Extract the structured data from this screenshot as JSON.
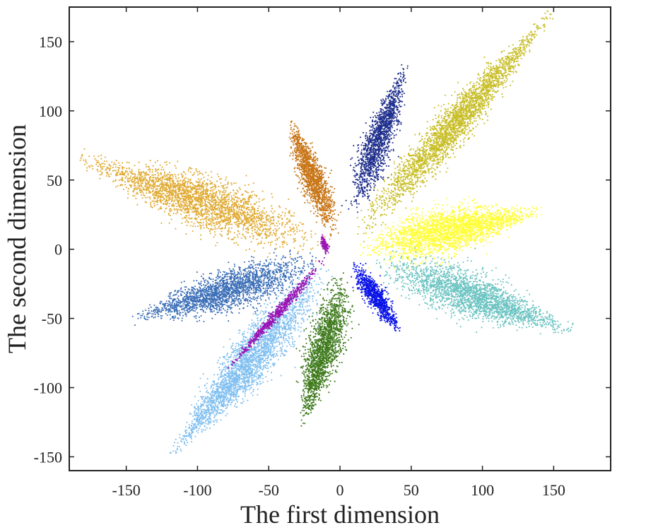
{
  "chart_data": {
    "type": "scatter",
    "title": "",
    "xlabel": "The first dimension",
    "ylabel": "The second dimension",
    "xlim": [
      -190,
      190
    ],
    "ylim": [
      -160,
      175
    ],
    "xticks": [
      -150,
      -100,
      -50,
      0,
      50,
      100,
      150
    ],
    "yticks": [
      -150,
      -100,
      -50,
      0,
      50,
      100,
      150
    ],
    "xtick_labels": [
      "-150",
      "-100",
      "-50",
      "0",
      "50",
      "100",
      "150"
    ],
    "ytick_labels": [
      "-150",
      "-100",
      "-50",
      "0",
      "50",
      "100",
      "150"
    ],
    "grid": false,
    "legend": "none",
    "series": [
      {
        "color": "#e0aa32",
        "start": [
          -8,
          2
        ],
        "end": [
          -182,
          65
        ],
        "width": 9,
        "points": 2600
      },
      {
        "color": "#c87618",
        "start": [
          -3,
          8
        ],
        "end": [
          -35,
          94
        ],
        "width": 4.5,
        "points": 1400
      },
      {
        "color": "#1f2f8c",
        "start": [
          8,
          22
        ],
        "end": [
          46,
          133
        ],
        "width": 5,
        "points": 1500
      },
      {
        "color": "#c8be28",
        "start": [
          8,
          5
        ],
        "end": [
          148,
          170
        ],
        "width": 6,
        "points": 2800
      },
      {
        "color": "#ffff38",
        "start": [
          8,
          -2
        ],
        "end": [
          142,
          28
        ],
        "width": 8,
        "points": 2600
      },
      {
        "color": "#6cc4c2",
        "start": [
          20,
          -8
        ],
        "end": [
          162,
          -58
        ],
        "width": 8,
        "points": 2400
      },
      {
        "color": "#0a14e6",
        "start": [
          8,
          -8
        ],
        "end": [
          42,
          -60
        ],
        "width": 3.5,
        "points": 900
      },
      {
        "color": "#3e7a1c",
        "start": [
          4,
          -14
        ],
        "end": [
          -26,
          -128
        ],
        "width": 6,
        "points": 1800
      },
      {
        "color": "#80bff0",
        "start": [
          -5,
          -8
        ],
        "end": [
          -118,
          -148
        ],
        "width": 7.5,
        "points": 2800
      },
      {
        "color": "#9a14b4",
        "start": [
          -8,
          -4
        ],
        "end": [
          -78,
          -86
        ],
        "width": 1.6,
        "points": 700
      },
      {
        "color": "#9a14b4",
        "start": [
          -8,
          -4
        ],
        "end": [
          -13,
          10
        ],
        "width": 1.2,
        "points": 120
      },
      {
        "color": "#3d70b8",
        "start": [
          -8,
          -8
        ],
        "end": [
          -146,
          -50
        ],
        "width": 7,
        "points": 2200
      }
    ]
  }
}
